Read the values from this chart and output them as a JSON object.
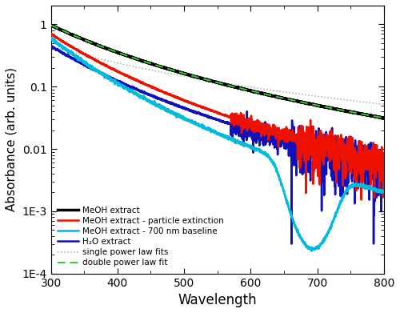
{
  "title": "",
  "xlabel": "Wavelength",
  "ylabel": "Absorbance (arb. units)",
  "xlim": [
    300,
    800
  ],
  "ylim": [
    0.0001,
    2
  ],
  "legend_entries": [
    "MeOH extract",
    "MeOH extract - particle extinction",
    "MeOH extract - 700 nm baseline",
    "H₂O extract",
    "single power law fits",
    "double power law fit"
  ],
  "line_colors": {
    "meoh": "#000000",
    "particle": "#ee1100",
    "baseline": "#00bbdd",
    "water": "#1111bb",
    "single_fit": "#aaaaaa",
    "double_fit": "#33cc33"
  },
  "background_color": "#ffffff",
  "ytick_labels": [
    "1E-4",
    "1E-3",
    "0.01",
    "0.1",
    "1"
  ],
  "ytick_vals": [
    0.0001,
    0.001,
    0.01,
    0.1,
    1
  ]
}
